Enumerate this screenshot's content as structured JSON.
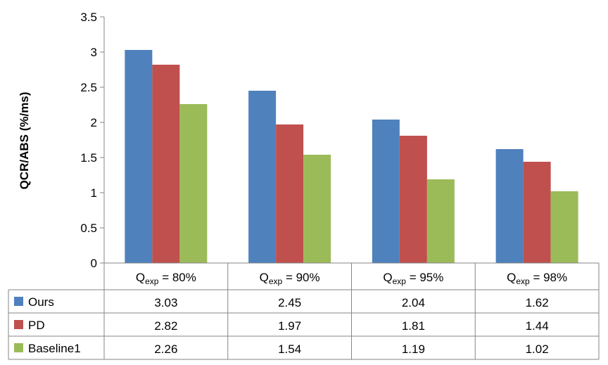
{
  "chart_data": {
    "type": "bar",
    "ylabel": "QCR/ABS (%/ms)",
    "ylim": [
      0,
      3.5
    ],
    "yticks": [
      "0",
      "0.5",
      "1",
      "1.5",
      "2",
      "2.5",
      "3",
      "3.5"
    ],
    "categories": [
      {
        "prefix": "Q",
        "sub": "exp",
        "suffix": " = 80%"
      },
      {
        "prefix": "Q",
        "sub": "exp",
        "suffix": " = 90%"
      },
      {
        "prefix": "Q",
        "sub": "exp",
        "suffix": " = 95%"
      },
      {
        "prefix": "Q",
        "sub": "exp",
        "suffix": " = 98%"
      }
    ],
    "series": [
      {
        "name": "Ours",
        "color": "#4f81bd",
        "values": [
          3.03,
          2.45,
          2.04,
          1.62
        ],
        "labels": [
          "3.03",
          "2.45",
          "2.04",
          "1.62"
        ]
      },
      {
        "name": "PD",
        "color": "#c0504d",
        "values": [
          2.82,
          1.97,
          1.81,
          1.44
        ],
        "labels": [
          "2.82",
          "1.97",
          "1.81",
          "1.44"
        ]
      },
      {
        "name": "Baseline1",
        "color": "#9bbb59",
        "values": [
          2.26,
          1.54,
          1.19,
          1.02
        ],
        "labels": [
          "2.26",
          "1.54",
          "1.19",
          "1.02"
        ]
      }
    ],
    "legend": "data-table",
    "grid": false
  }
}
